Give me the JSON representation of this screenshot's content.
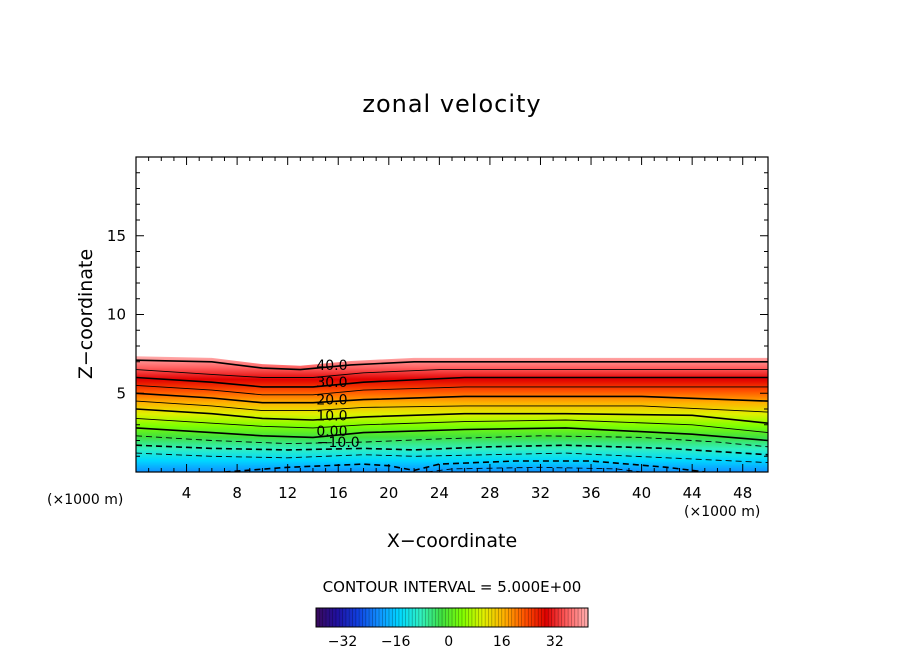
{
  "chart_data": {
    "type": "contour",
    "title": "zonal velocity",
    "xlabel": "X−coordinate",
    "ylabel": "Z−coordinate",
    "x_unit_left": "(×1000 m)",
    "x_unit_right": "(×1000 m)",
    "xlim": [
      0,
      50
    ],
    "ylim": [
      0,
      20
    ],
    "x_ticks": [
      4,
      8,
      12,
      16,
      20,
      24,
      28,
      32,
      36,
      40,
      44,
      48
    ],
    "x_tick_labels": [
      "4",
      "8",
      "12",
      "16",
      "20",
      "24",
      "28",
      "32",
      "36",
      "40",
      "44",
      "48"
    ],
    "y_ticks": [
      5,
      10,
      15
    ],
    "y_tick_labels": [
      "5",
      "10",
      "15"
    ],
    "contour_interval_text": "CONTOUR INTERVAL = 5.000E+00",
    "contour_interval": 5,
    "top_of_field_z": 7.3,
    "contour_labels": [
      {
        "text": "40.0",
        "x": 15.5,
        "z": 6.8
      },
      {
        "text": "30.0",
        "x": 15.5,
        "z": 5.7
      },
      {
        "text": "20.0",
        "x": 15.5,
        "z": 4.6
      },
      {
        "text": "10.0",
        "x": 15.5,
        "z": 3.6
      },
      {
        "text": "0.00",
        "x": 15.5,
        "z": 2.6
      },
      {
        "text": "−10.0",
        "x": 16.0,
        "z": 1.9
      }
    ],
    "isolines": [
      {
        "level": 40,
        "points": [
          [
            0,
            7.1
          ],
          [
            6,
            7.0
          ],
          [
            10,
            6.6
          ],
          [
            13,
            6.5
          ],
          [
            17,
            6.8
          ],
          [
            22,
            7.0
          ],
          [
            50,
            7.0
          ]
        ]
      },
      {
        "level": 35,
        "points": [
          [
            0,
            6.5
          ],
          [
            6,
            6.2
          ],
          [
            10,
            6.0
          ],
          [
            14,
            6.0
          ],
          [
            18,
            6.3
          ],
          [
            24,
            6.5
          ],
          [
            50,
            6.5
          ]
        ]
      },
      {
        "level": 30,
        "points": [
          [
            0,
            6.0
          ],
          [
            6,
            5.7
          ],
          [
            10,
            5.4
          ],
          [
            14,
            5.4
          ],
          [
            18,
            5.7
          ],
          [
            26,
            6.0
          ],
          [
            50,
            6.0
          ]
        ]
      },
      {
        "level": 25,
        "points": [
          [
            0,
            5.5
          ],
          [
            6,
            5.2
          ],
          [
            10,
            4.9
          ],
          [
            14,
            4.9
          ],
          [
            18,
            5.2
          ],
          [
            26,
            5.4
          ],
          [
            50,
            5.4
          ]
        ]
      },
      {
        "level": 20,
        "points": [
          [
            0,
            5.0
          ],
          [
            6,
            4.7
          ],
          [
            10,
            4.4
          ],
          [
            14,
            4.4
          ],
          [
            18,
            4.6
          ],
          [
            26,
            4.8
          ],
          [
            40,
            4.8
          ],
          [
            50,
            4.5
          ]
        ]
      },
      {
        "level": 15,
        "points": [
          [
            0,
            4.5
          ],
          [
            6,
            4.2
          ],
          [
            10,
            3.9
          ],
          [
            14,
            3.9
          ],
          [
            18,
            4.1
          ],
          [
            26,
            4.2
          ],
          [
            40,
            4.2
          ],
          [
            50,
            3.8
          ]
        ]
      },
      {
        "level": 10,
        "points": [
          [
            0,
            4.0
          ],
          [
            6,
            3.7
          ],
          [
            10,
            3.4
          ],
          [
            14,
            3.3
          ],
          [
            18,
            3.5
          ],
          [
            26,
            3.7
          ],
          [
            34,
            3.7
          ],
          [
            44,
            3.6
          ],
          [
            50,
            3.1
          ]
        ]
      },
      {
        "level": 5,
        "points": [
          [
            0,
            3.4
          ],
          [
            6,
            3.1
          ],
          [
            10,
            2.9
          ],
          [
            14,
            2.8
          ],
          [
            18,
            3.0
          ],
          [
            26,
            3.2
          ],
          [
            34,
            3.3
          ],
          [
            44,
            3.0
          ],
          [
            50,
            2.5
          ]
        ]
      },
      {
        "level": 0,
        "points": [
          [
            0,
            2.8
          ],
          [
            6,
            2.5
          ],
          [
            10,
            2.3
          ],
          [
            14,
            2.2
          ],
          [
            18,
            2.5
          ],
          [
            26,
            2.7
          ],
          [
            34,
            2.8
          ],
          [
            44,
            2.4
          ],
          [
            50,
            2.0
          ]
        ]
      },
      {
        "level": -5,
        "points": [
          [
            0,
            2.3
          ],
          [
            6,
            2.0
          ],
          [
            12,
            1.8
          ],
          [
            18,
            1.9
          ],
          [
            24,
            2.1
          ],
          [
            32,
            2.3
          ],
          [
            40,
            2.2
          ],
          [
            46,
            1.9
          ],
          [
            50,
            1.6
          ]
        ]
      },
      {
        "level": -10,
        "points": [
          [
            0,
            1.7
          ],
          [
            6,
            1.5
          ],
          [
            12,
            1.4
          ],
          [
            18,
            1.5
          ],
          [
            22,
            1.4
          ],
          [
            28,
            1.6
          ],
          [
            34,
            1.7
          ],
          [
            42,
            1.5
          ],
          [
            50,
            1.1
          ]
        ]
      },
      {
        "level": -15,
        "points": [
          [
            0,
            1.2
          ],
          [
            6,
            1.0
          ],
          [
            12,
            0.9
          ],
          [
            18,
            1.1
          ],
          [
            22,
            1.0
          ],
          [
            28,
            1.1
          ],
          [
            34,
            1.2
          ],
          [
            42,
            0.9
          ],
          [
            50,
            0.6
          ]
        ]
      },
      {
        "level": -20,
        "points": [
          [
            7,
            0.0
          ],
          [
            12,
            0.3
          ],
          [
            18,
            0.5
          ],
          [
            20,
            0.4
          ],
          [
            22,
            0.1
          ],
          [
            24,
            0.5
          ],
          [
            30,
            0.7
          ],
          [
            36,
            0.7
          ],
          [
            42,
            0.3
          ],
          [
            45,
            0.0
          ]
        ]
      },
      {
        "level": -25,
        "points": [
          [
            23,
            0.0
          ],
          [
            25,
            0.2
          ],
          [
            32,
            0.3
          ],
          [
            38,
            0.2
          ],
          [
            40,
            0.0
          ]
        ]
      }
    ],
    "colorbar": {
      "range": [
        -40,
        42
      ],
      "tick_values": [
        -32,
        -16,
        0,
        16,
        32
      ],
      "tick_labels": [
        "−32",
        "−16",
        "0",
        "16",
        "32"
      ],
      "colors": [
        "#3a0a5a",
        "#2010a0",
        "#1040e0",
        "#1090ff",
        "#00d8ff",
        "#30f0c0",
        "#40e040",
        "#80ff00",
        "#e0f000",
        "#ffb000",
        "#ff5000",
        "#e00000",
        "#ff6060",
        "#ffb0b0"
      ]
    },
    "grid": false,
    "legend": "none"
  }
}
